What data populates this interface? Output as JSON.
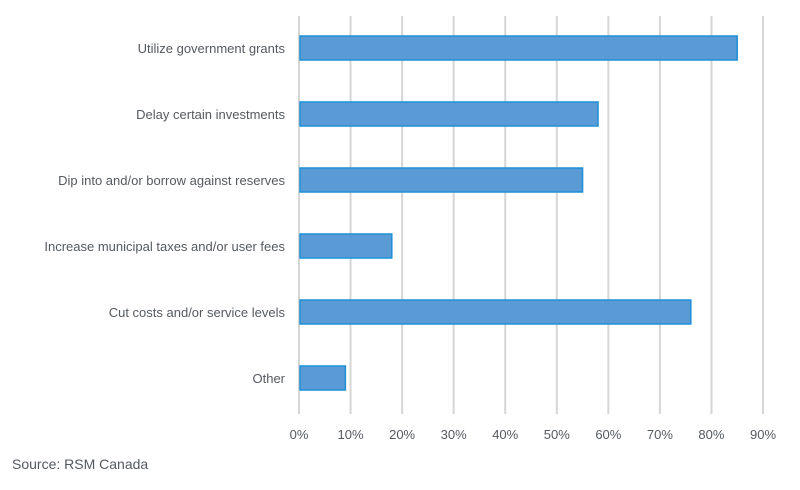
{
  "chart_data": {
    "type": "bar",
    "orientation": "horizontal",
    "categories": [
      "Utilize government grants",
      "Delay certain investments",
      "Dip into and/or borrow against reserves",
      "Increase municipal taxes and/or user fees",
      "Cut costs and/or service levels",
      "Other"
    ],
    "values": [
      85,
      58,
      55,
      18,
      76,
      9
    ],
    "xlim": [
      0,
      90
    ],
    "xticks": [
      0,
      10,
      20,
      30,
      40,
      50,
      60,
      70,
      80,
      90
    ],
    "tick_suffix": "%",
    "grid": true,
    "bar_color": "#5b9bd5",
    "bar_edge_color": "#1f8fd6"
  },
  "source": "Source: RSM Canada"
}
